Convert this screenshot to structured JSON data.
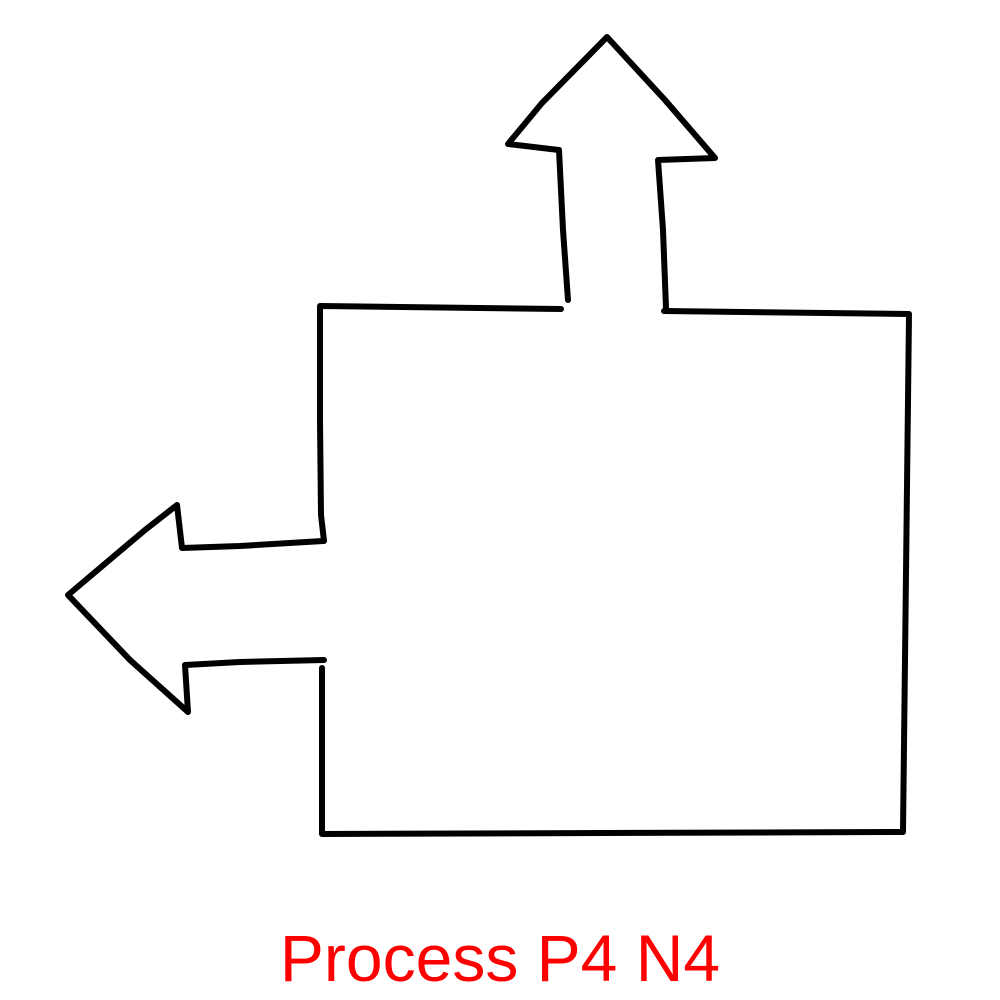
{
  "caption": {
    "text": "Process P4 N4",
    "color": "#ff0000"
  },
  "shape": {
    "kind": "process",
    "stroke_color": "#000000",
    "background": "#ffffff",
    "arrows": [
      "up",
      "left"
    ]
  }
}
